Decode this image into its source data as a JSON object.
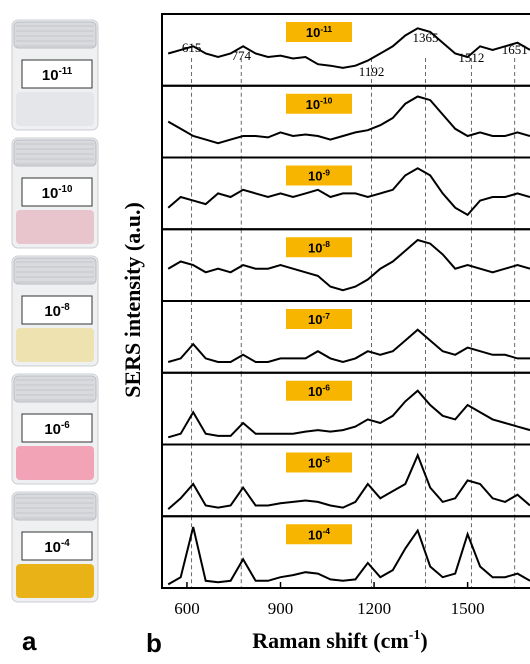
{
  "panel_a": {
    "label": "a",
    "vials": [
      {
        "label": {
          "base": "10",
          "exponent": "-11"
        },
        "liquid": "#e4e6ea"
      },
      {
        "label": {
          "base": "10",
          "exponent": "-10"
        },
        "liquid": "#e8c4cc"
      },
      {
        "label": {
          "base": "10",
          "exponent": "-8"
        },
        "liquid": "#ede2b0"
      },
      {
        "label": {
          "base": "10",
          "exponent": "-6"
        },
        "liquid": "#f2a3b5"
      },
      {
        "label": {
          "base": "10",
          "exponent": "-4"
        },
        "liquid": "#e9b318"
      }
    ]
  },
  "chart_data": {
    "type": "line",
    "panel_label": "b",
    "xlabel": {
      "text": "Raman shift (cm",
      "sup": "-1",
      "end": ")"
    },
    "ylabel": "SERS intensity (a.u.)",
    "xlim": [
      520,
      1700
    ],
    "ylim": [
      0,
      1
    ],
    "xticks": [
      600,
      900,
      1200,
      1500
    ],
    "peaks": [
      615,
      774,
      1192,
      1365,
      1512,
      1651
    ],
    "color": "#000000",
    "label_color": "#f7b500",
    "x": [
      540,
      580,
      620,
      660,
      700,
      740,
      780,
      820,
      860,
      900,
      940,
      980,
      1020,
      1060,
      1100,
      1140,
      1180,
      1220,
      1260,
      1300,
      1340,
      1380,
      1420,
      1460,
      1500,
      1540,
      1580,
      1620,
      1660,
      1700
    ],
    "series": [
      {
        "label": {
          "base": "10",
          "exponent": "-11"
        },
        "values": [
          0.45,
          0.5,
          0.55,
          0.45,
          0.4,
          0.45,
          0.55,
          0.45,
          0.4,
          0.42,
          0.38,
          0.4,
          0.3,
          0.28,
          0.25,
          0.28,
          0.35,
          0.45,
          0.55,
          0.7,
          0.8,
          0.75,
          0.6,
          0.45,
          0.4,
          0.55,
          0.5,
          0.55,
          0.6,
          0.5
        ]
      },
      {
        "label": {
          "base": "10",
          "exponent": "-10"
        },
        "values": [
          0.5,
          0.4,
          0.3,
          0.25,
          0.2,
          0.25,
          0.3,
          0.3,
          0.28,
          0.35,
          0.3,
          0.32,
          0.3,
          0.25,
          0.3,
          0.35,
          0.38,
          0.45,
          0.55,
          0.75,
          0.85,
          0.8,
          0.6,
          0.4,
          0.3,
          0.35,
          0.3,
          0.3,
          0.35,
          0.3
        ]
      },
      {
        "label": {
          "base": "10",
          "exponent": "-9"
        },
        "values": [
          0.3,
          0.45,
          0.4,
          0.35,
          0.5,
          0.45,
          0.55,
          0.5,
          0.45,
          0.5,
          0.45,
          0.5,
          0.55,
          0.45,
          0.5,
          0.5,
          0.45,
          0.5,
          0.55,
          0.75,
          0.85,
          0.75,
          0.5,
          0.3,
          0.2,
          0.4,
          0.45,
          0.45,
          0.5,
          0.45
        ]
      },
      {
        "label": {
          "base": "10",
          "exponent": "-8"
        },
        "values": [
          0.45,
          0.55,
          0.5,
          0.4,
          0.45,
          0.4,
          0.5,
          0.45,
          0.45,
          0.5,
          0.45,
          0.4,
          0.35,
          0.2,
          0.15,
          0.2,
          0.3,
          0.45,
          0.55,
          0.7,
          0.85,
          0.8,
          0.65,
          0.45,
          0.5,
          0.45,
          0.4,
          0.45,
          0.5,
          0.45
        ]
      },
      {
        "label": {
          "base": "10",
          "exponent": "-7"
        },
        "values": [
          0.15,
          0.2,
          0.4,
          0.2,
          0.15,
          0.15,
          0.25,
          0.15,
          0.15,
          0.2,
          0.2,
          0.2,
          0.3,
          0.2,
          0.15,
          0.2,
          0.3,
          0.25,
          0.3,
          0.45,
          0.6,
          0.45,
          0.3,
          0.25,
          0.35,
          0.3,
          0.25,
          0.25,
          0.2,
          0.2
        ]
      },
      {
        "label": {
          "base": "10",
          "exponent": "-6"
        },
        "values": [
          0.1,
          0.15,
          0.45,
          0.15,
          0.12,
          0.12,
          0.3,
          0.15,
          0.15,
          0.15,
          0.15,
          0.18,
          0.2,
          0.18,
          0.2,
          0.25,
          0.35,
          0.3,
          0.4,
          0.6,
          0.75,
          0.55,
          0.4,
          0.35,
          0.55,
          0.45,
          0.35,
          0.3,
          0.25,
          0.2
        ]
      },
      {
        "label": {
          "base": "10",
          "exponent": "-5"
        },
        "values": [
          0.1,
          0.25,
          0.45,
          0.15,
          0.12,
          0.15,
          0.4,
          0.15,
          0.15,
          0.18,
          0.2,
          0.22,
          0.2,
          0.15,
          0.12,
          0.2,
          0.45,
          0.25,
          0.35,
          0.45,
          0.85,
          0.4,
          0.2,
          0.25,
          0.5,
          0.45,
          0.25,
          0.2,
          0.3,
          0.15
        ]
      },
      {
        "label": {
          "base": "10",
          "exponent": "-4"
        },
        "values": [
          0.05,
          0.15,
          0.85,
          0.1,
          0.08,
          0.1,
          0.4,
          0.1,
          0.1,
          0.15,
          0.18,
          0.22,
          0.2,
          0.12,
          0.1,
          0.12,
          0.35,
          0.15,
          0.25,
          0.55,
          0.8,
          0.3,
          0.15,
          0.2,
          0.75,
          0.3,
          0.15,
          0.15,
          0.2,
          0.1
        ]
      }
    ]
  }
}
